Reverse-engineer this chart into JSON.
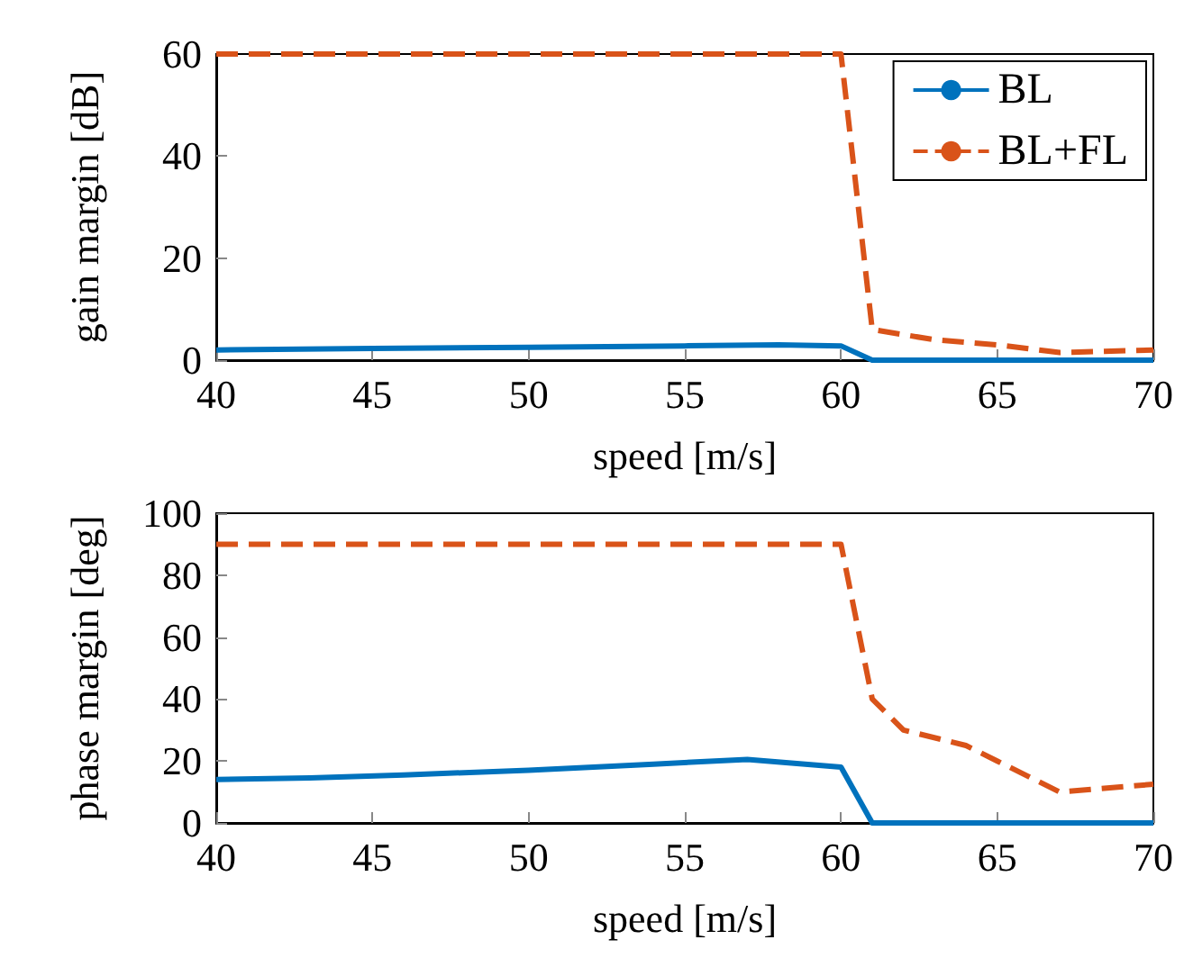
{
  "chart_data": [
    {
      "type": "line",
      "xlabel": "speed [m/s]",
      "ylabel": "gain margin [dB]",
      "xlim": [
        40,
        70
      ],
      "xticks": [
        40,
        45,
        50,
        55,
        60,
        65,
        70
      ],
      "ylim": [
        0,
        60
      ],
      "yticks": [
        0,
        20,
        40,
        60
      ],
      "grid": false,
      "legend": "top right",
      "marker": "none",
      "series": [
        {
          "name": "BL",
          "color": "#0072bd",
          "line_style": "solid",
          "x": [
            40,
            45,
            50,
            55,
            58,
            60,
            61,
            65,
            70
          ],
          "values": [
            2,
            2.3,
            2.5,
            2.8,
            3,
            2.8,
            0,
            0,
            0
          ]
        },
        {
          "name": "BL+FL",
          "color": "#d95319",
          "line_style": "dashed",
          "x": [
            40,
            50,
            60,
            61,
            63,
            65,
            67,
            70
          ],
          "values": [
            60,
            60,
            60,
            6,
            4,
            3,
            1.5,
            2
          ]
        }
      ]
    },
    {
      "type": "line",
      "xlabel": "speed [m/s]",
      "ylabel": "phase margin [deg]",
      "xlim": [
        40,
        70
      ],
      "xticks": [
        40,
        45,
        50,
        55,
        60,
        65,
        70
      ],
      "ylim": [
        0,
        100
      ],
      "yticks": [
        0,
        20,
        40,
        60,
        80,
        100
      ],
      "grid": false,
      "marker": "none",
      "series": [
        {
          "color": "#0072bd",
          "line_style": "solid",
          "x": [
            40,
            43,
            46,
            50,
            54,
            57,
            60,
            61,
            65,
            70
          ],
          "values": [
            14,
            14.5,
            15.5,
            17,
            19,
            20.5,
            18,
            0,
            0,
            0
          ]
        },
        {
          "color": "#d95319",
          "line_style": "dashed",
          "x": [
            40,
            50,
            60,
            61,
            62,
            64,
            65,
            67,
            70
          ],
          "values": [
            90,
            90,
            90,
            40,
            30,
            25,
            20,
            10,
            12.5
          ]
        }
      ]
    }
  ]
}
